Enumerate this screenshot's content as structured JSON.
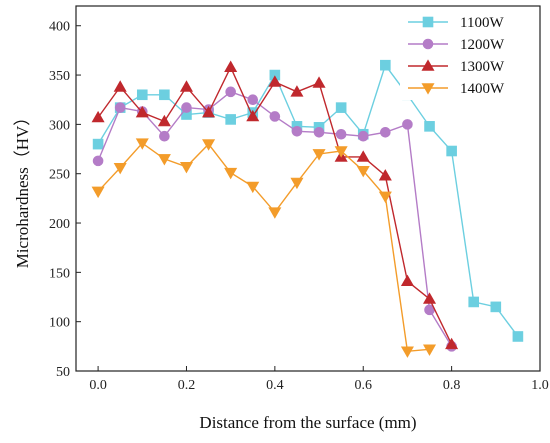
{
  "chart_data": {
    "type": "line",
    "xlabel": "Distance from the surface (mm)",
    "ylabel": "Microhardness（HV）",
    "xlim": [
      -0.05,
      1.0
    ],
    "ylim": [
      50,
      420
    ],
    "xticks": [
      0.0,
      0.2,
      0.4,
      0.6,
      0.8,
      1.0
    ],
    "xtick_labels": [
      "0.0",
      "0.2",
      "0.4",
      "0.6",
      "0.8",
      "1.0"
    ],
    "yticks": [
      50,
      100,
      150,
      200,
      250,
      300,
      350,
      400
    ],
    "ytick_labels": [
      "50",
      "100",
      "150",
      "200",
      "250",
      "300",
      "350",
      "400"
    ],
    "legend_position": "top-right",
    "grid": false,
    "series": [
      {
        "name": "1100W",
        "color": "#6ccfe0",
        "marker": "square",
        "x": [
          0.0,
          0.05,
          0.1,
          0.15,
          0.2,
          0.25,
          0.3,
          0.35,
          0.4,
          0.45,
          0.5,
          0.55,
          0.6,
          0.65,
          0.7,
          0.75,
          0.8,
          0.85,
          0.9,
          0.95
        ],
        "y": [
          280,
          317,
          330,
          330,
          310,
          312,
          305,
          312,
          350,
          298,
          297,
          317,
          290,
          360,
          330,
          298,
          273,
          120,
          115,
          85
        ]
      },
      {
        "name": "1200W",
        "color": "#b47cc7",
        "marker": "circle",
        "x": [
          0.0,
          0.05,
          0.1,
          0.15,
          0.2,
          0.25,
          0.3,
          0.35,
          0.4,
          0.45,
          0.5,
          0.55,
          0.6,
          0.65,
          0.7,
          0.75,
          0.8
        ],
        "y": [
          263,
          317,
          313,
          288,
          317,
          315,
          333,
          325,
          308,
          293,
          292,
          290,
          288,
          292,
          300,
          112,
          75
        ]
      },
      {
        "name": "1300W",
        "color": "#c0282d",
        "marker": "triangle-up",
        "x": [
          0.0,
          0.05,
          0.1,
          0.15,
          0.2,
          0.25,
          0.3,
          0.35,
          0.4,
          0.45,
          0.5,
          0.55,
          0.6,
          0.65,
          0.7,
          0.75,
          0.8
        ],
        "y": [
          307,
          338,
          312,
          303,
          338,
          312,
          358,
          308,
          343,
          333,
          342,
          267,
          267,
          248,
          141,
          123,
          77
        ]
      },
      {
        "name": "1400W",
        "color": "#f39c2a",
        "marker": "triangle-down",
        "x": [
          0.0,
          0.05,
          0.1,
          0.15,
          0.2,
          0.25,
          0.3,
          0.35,
          0.4,
          0.45,
          0.5,
          0.55,
          0.6,
          0.65,
          0.7,
          0.75
        ],
        "y": [
          232,
          256,
          281,
          265,
          257,
          280,
          251,
          237,
          211,
          241,
          270,
          273,
          253,
          227,
          70,
          72
        ]
      }
    ]
  }
}
